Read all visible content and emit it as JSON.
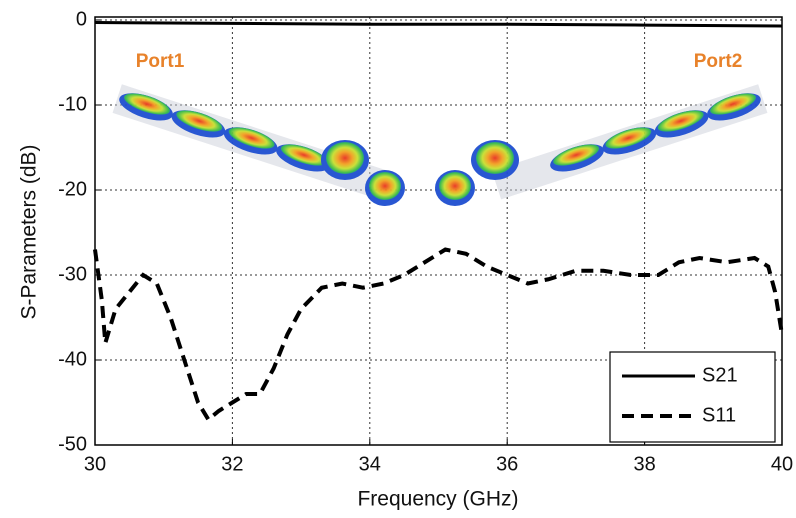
{
  "chart_data": {
    "type": "line",
    "xlabel": "Frequency (GHz)",
    "ylabel": "S-Parameters (dB)",
    "xlim": [
      30,
      40
    ],
    "xticks": [
      30,
      32,
      34,
      36,
      38,
      40
    ],
    "ylim": [
      -50,
      0
    ],
    "yticks": [
      -50,
      -40,
      -30,
      -20,
      -10,
      0
    ],
    "grid": true,
    "legend": "lower right",
    "annotations": [
      {
        "text": "Port1",
        "color": "#e8822a"
      },
      {
        "text": "Port2",
        "color": "#e8822a"
      }
    ],
    "series": [
      {
        "name": "S21",
        "color": "#000000",
        "style": "solid",
        "x": [
          30,
          32,
          34,
          36,
          38,
          40
        ],
        "values": [
          -0.3,
          -0.4,
          -0.5,
          -0.5,
          -0.6,
          -0.7
        ]
      },
      {
        "name": "S11",
        "color": "#000000",
        "style": "dashed",
        "x": [
          30,
          30.1,
          30.15,
          30.3,
          30.5,
          30.7,
          30.9,
          31.1,
          31.3,
          31.5,
          31.65,
          31.8,
          32,
          32.2,
          32.4,
          32.6,
          32.8,
          33,
          33.3,
          33.6,
          33.9,
          34.2,
          34.5,
          34.8,
          35.1,
          35.4,
          35.7,
          36,
          36.3,
          36.6,
          37,
          37.4,
          37.8,
          38.2,
          38.5,
          38.8,
          39.2,
          39.6,
          39.8,
          39.9,
          40
        ],
        "values": [
          -27,
          -33,
          -38,
          -34,
          -32,
          -30,
          -31,
          -35,
          -40,
          -45,
          -47,
          -46,
          -45,
          -44,
          -44,
          -41,
          -37,
          -34,
          -31.5,
          -31,
          -31.5,
          -31,
          -30,
          -28.5,
          -27,
          -27.5,
          -29,
          -30,
          -31,
          -30.5,
          -29.5,
          -29.5,
          -30,
          -30,
          -28.5,
          -28,
          -28.5,
          -28,
          -29,
          -32,
          -37
        ]
      }
    ]
  }
}
